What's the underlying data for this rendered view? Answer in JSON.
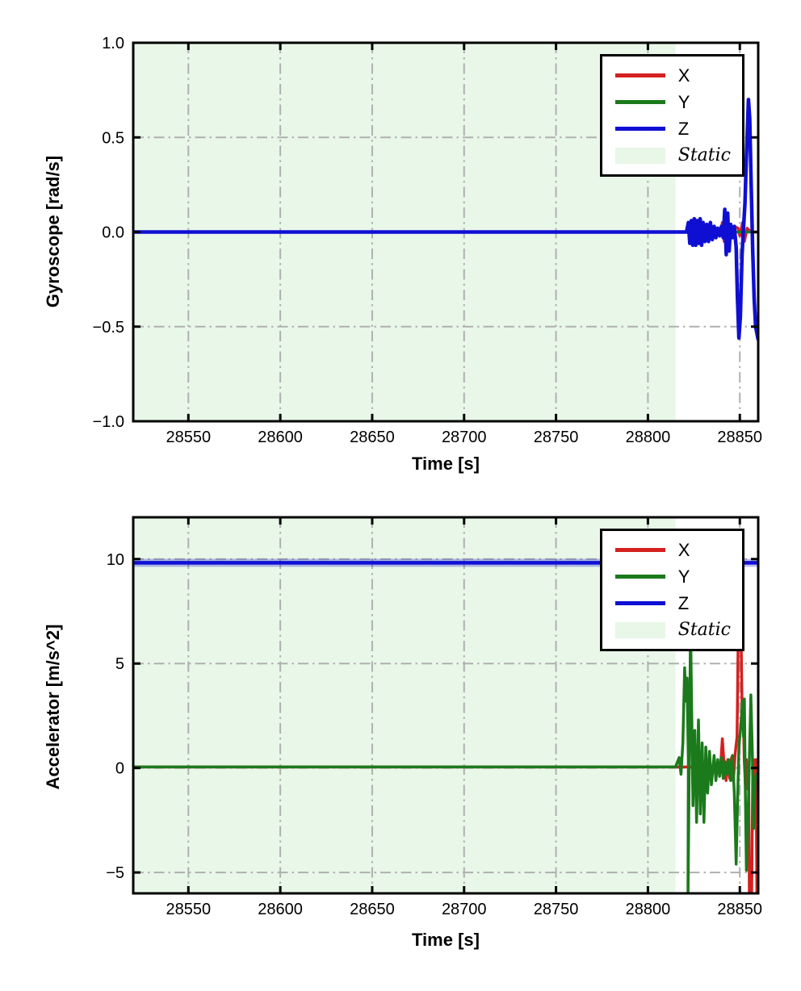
{
  "chart_data": [
    {
      "type": "line",
      "title": "",
      "xlabel": "Time [s]",
      "ylabel": "Gyroscope [rad/s]",
      "xlim": [
        28520,
        28860
      ],
      "ylim": [
        -1.0,
        1.0
      ],
      "grid": "dash-dot",
      "legend_position": "upper-right",
      "xticks": {
        "values": [
          28550,
          28600,
          28650,
          28700,
          28750,
          28800,
          28850
        ],
        "labels": [
          "28550",
          "28600",
          "28650",
          "28700",
          "28750",
          "28800",
          "28850"
        ]
      },
      "yticks": {
        "values": [
          1.0,
          0.5,
          0.0,
          -0.5,
          -1.0
        ],
        "labels": [
          "1.0",
          "0.5",
          "0.0",
          "−0.5",
          "−1.0"
        ]
      },
      "static_region": {
        "x0": 28520,
        "x1": 28815,
        "label": "Static",
        "color": "#e8f7e8"
      },
      "grid_color": "#b0b0b0",
      "series": [
        {
          "name": "X",
          "color": "#d62020",
          "points": [
            [
              28520,
              0
            ],
            [
              28822,
              0
            ],
            [
              28823.5,
              0.05
            ],
            [
              28824.5,
              -0.05
            ],
            [
              28825.5,
              0.05
            ],
            [
              28826.5,
              -0.06
            ],
            [
              28827.5,
              0.06
            ],
            [
              28828.5,
              -0.05
            ],
            [
              28829.5,
              0.05
            ],
            [
              28830.5,
              -0.05
            ],
            [
              28831.5,
              0.04
            ],
            [
              28833,
              -0.04
            ],
            [
              28834,
              0.03
            ],
            [
              28835.5,
              -0.03
            ],
            [
              28837,
              0.02
            ],
            [
              28839,
              -0.02
            ],
            [
              28840.5,
              0.05
            ],
            [
              28841.5,
              -0.05
            ],
            [
              28842.5,
              0.05
            ],
            [
              28843.5,
              -0.04
            ],
            [
              28845,
              0.04
            ],
            [
              28846,
              -0.03
            ],
            [
              28847,
              0.03
            ],
            [
              28849,
              0.02
            ],
            [
              28850,
              -0.02
            ],
            [
              28851.5,
              0.05
            ],
            [
              28852.5,
              -0.05
            ],
            [
              28854,
              0.02
            ],
            [
              28856,
              0
            ],
            [
              28860,
              0
            ]
          ]
        },
        {
          "name": "Y",
          "color": "#1b7a1b",
          "points": [
            [
              28520,
              0
            ],
            [
              28823,
              0
            ],
            [
              28824,
              0.04
            ],
            [
              28826,
              -0.04
            ],
            [
              28828,
              0.04
            ],
            [
              28830,
              -0.04
            ],
            [
              28832,
              0.03
            ],
            [
              28834,
              -0.03
            ],
            [
              28836,
              0
            ],
            [
              28860,
              0
            ]
          ]
        },
        {
          "name": "Z",
          "color": "#0f0fd4",
          "points": [
            [
              28520,
              0
            ],
            [
              28821,
              0
            ],
            [
              28822,
              0.05
            ],
            [
              28822.8,
              -0.06
            ],
            [
              28823.6,
              0.06
            ],
            [
              28824.4,
              -0.07
            ],
            [
              28825.2,
              0.07
            ],
            [
              28826,
              -0.07
            ],
            [
              28826.8,
              0.06
            ],
            [
              28827.6,
              -0.06
            ],
            [
              28828.4,
              0.07
            ],
            [
              28829.2,
              -0.07
            ],
            [
              28830,
              0.05
            ],
            [
              28831,
              -0.05
            ],
            [
              28832,
              0.04
            ],
            [
              28833,
              -0.05
            ],
            [
              28834,
              0.05
            ],
            [
              28835,
              -0.04
            ],
            [
              28836,
              0.03
            ],
            [
              28837,
              -0.03
            ],
            [
              28838,
              0.02
            ],
            [
              28839,
              -0.02
            ],
            [
              28840,
              0.03
            ],
            [
              28841,
              -0.03
            ],
            [
              28841.8,
              0.12
            ],
            [
              28842.6,
              -0.12
            ],
            [
              28843.4,
              0.1
            ],
            [
              28844.2,
              -0.1
            ],
            [
              28845,
              0.04
            ],
            [
              28846,
              -0.03
            ],
            [
              28847,
              0.03
            ],
            [
              28848,
              -0.08
            ],
            [
              28848.7,
              -0.35
            ],
            [
              28849.5,
              -0.56
            ],
            [
              28850.3,
              -0.45
            ],
            [
              28851.2,
              -0.12
            ],
            [
              28852,
              0.02
            ],
            [
              28852.8,
              0.15
            ],
            [
              28853.6,
              0.4
            ],
            [
              28854.7,
              0.7
            ],
            [
              28855.4,
              0.6
            ],
            [
              28856.2,
              0.25
            ],
            [
              28857,
              -0.1
            ],
            [
              28857.8,
              -0.35
            ],
            [
              28858.6,
              -0.5
            ],
            [
              28860,
              -0.57
            ]
          ]
        }
      ]
    },
    {
      "type": "line",
      "title": "",
      "xlabel": "Time [s]",
      "ylabel": "Accelerator [m/s^2]",
      "xlim": [
        28520,
        28860
      ],
      "ylim": [
        -6,
        12
      ],
      "grid": "dash-dot",
      "legend_position": "upper-right",
      "xticks": {
        "values": [
          28550,
          28600,
          28650,
          28700,
          28750,
          28800,
          28850
        ],
        "labels": [
          "28550",
          "28600",
          "28650",
          "28700",
          "28750",
          "28800",
          "28850"
        ]
      },
      "yticks": {
        "values": [
          10,
          5,
          0,
          -5
        ],
        "labels": [
          "10",
          "5",
          "0",
          "−5"
        ]
      },
      "static_region": {
        "x0": 28520,
        "x1": 28815,
        "label": "Static",
        "color": "#e8f7e8"
      },
      "grid_color": "#b0b0b0",
      "series": [
        {
          "name": "X",
          "color": "#d62020",
          "points": [
            [
              28520,
              0.05
            ],
            [
              28839.5,
              0.05
            ],
            [
              28840.5,
              1.4
            ],
            [
              28841.5,
              0.1
            ],
            [
              28842.5,
              -0.6
            ],
            [
              28843.5,
              0.4
            ],
            [
              28844.5,
              -0.5
            ],
            [
              28845.5,
              0.5
            ],
            [
              28846.5,
              -0.6
            ],
            [
              28847.5,
              0.7
            ],
            [
              28848.5,
              1.5
            ],
            [
              28849.2,
              6.8
            ],
            [
              28850.6,
              6.8
            ],
            [
              28851.2,
              3.0
            ],
            [
              28851.8,
              3.3
            ],
            [
              28852.4,
              0.4
            ],
            [
              28853,
              -0.8
            ],
            [
              28853.6,
              0.4
            ],
            [
              28854.2,
              -1.0
            ],
            [
              28854.8,
              -0.3
            ],
            [
              28855.2,
              -6.6
            ],
            [
              28856.4,
              -6.6
            ],
            [
              28857,
              -0.5
            ],
            [
              28857.6,
              0.4
            ],
            [
              28858.2,
              -0.4
            ],
            [
              28858.8,
              0.4
            ],
            [
              28859.3,
              -6.6
            ],
            [
              28860,
              -6.6
            ]
          ]
        },
        {
          "name": "Y",
          "color": "#1b7a1b",
          "points": [
            [
              28520,
              0.05
            ],
            [
              28815,
              0.05
            ],
            [
              28817,
              0.5
            ],
            [
              28818,
              -0.3
            ],
            [
              28819,
              1.2
            ],
            [
              28820,
              4.8
            ],
            [
              28820.7,
              3.2
            ],
            [
              28821.3,
              4.3
            ],
            [
              28822,
              0.3
            ],
            [
              28821.8,
              -6.5
            ],
            [
              28823.2,
              6.8
            ],
            [
              28824.5,
              -1.8
            ],
            [
              28825.5,
              1.8
            ],
            [
              28826.5,
              -2.6
            ],
            [
              28827.5,
              2.3
            ],
            [
              28828.5,
              -2.2
            ],
            [
              28829.5,
              1.2
            ],
            [
              28830.5,
              -2.6
            ],
            [
              28831.5,
              1.0
            ],
            [
              28832.5,
              -1.2
            ],
            [
              28833.5,
              0.8
            ],
            [
              28834.5,
              -0.8
            ],
            [
              28836,
              0.6
            ],
            [
              28837,
              -0.6
            ],
            [
              28838,
              0.4
            ],
            [
              28839,
              -0.4
            ],
            [
              28840,
              0.5
            ],
            [
              28841,
              -0.5
            ],
            [
              28842,
              0.3
            ],
            [
              28843,
              -0.3
            ],
            [
              28844,
              0.4
            ],
            [
              28845,
              -0.6
            ],
            [
              28846,
              0.6
            ],
            [
              28847,
              -1.2
            ],
            [
              28848,
              -4.6
            ],
            [
              28848.8,
              -1.5
            ],
            [
              28849.5,
              1.0
            ],
            [
              28850.5,
              2.0
            ],
            [
              28851.5,
              3.2
            ],
            [
              28852,
              1.5
            ],
            [
              28852.5,
              3.3
            ],
            [
              28853,
              -1.2
            ],
            [
              28853.6,
              -4.9
            ],
            [
              28854.5,
              -2.2
            ],
            [
              28855.2,
              0.5
            ],
            [
              28856,
              3.5
            ],
            [
              28856.8,
              0.8
            ],
            [
              28857.5,
              -2.9
            ],
            [
              28858.3,
              -0.6
            ],
            [
              28859,
              -0.3
            ],
            [
              28860,
              -0.4
            ]
          ]
        },
        {
          "name": "Z",
          "color": "#0f0fd4",
          "points": [
            [
              28520,
              9.82
            ],
            [
              28860,
              9.82
            ]
          ]
        }
      ]
    }
  ]
}
